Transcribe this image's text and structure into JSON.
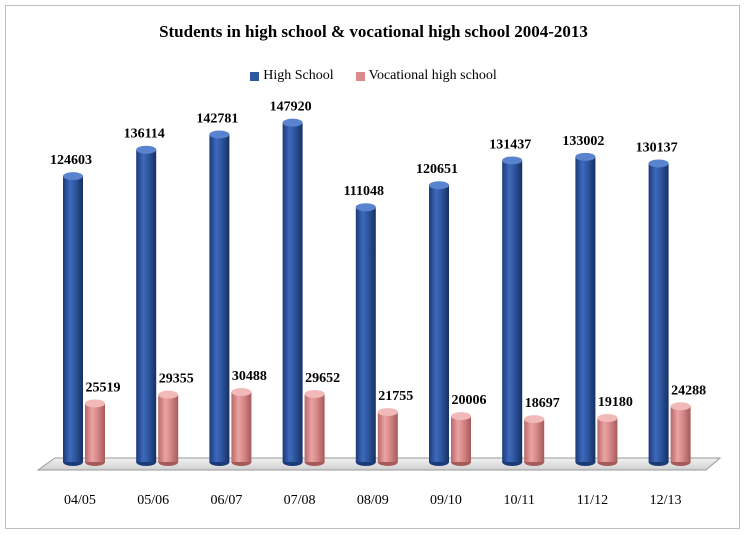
{
  "chart_data": {
    "type": "bar",
    "title": "Students in high school & vocational high school 2004-2013",
    "categories": [
      "04/05",
      "05/06",
      "06/07",
      "07/08",
      "08/09",
      "09/10",
      "10/11",
      "11/12",
      "12/13"
    ],
    "series": [
      {
        "name": "High School",
        "values": [
          124603,
          136114,
          142781,
          147920,
          111048,
          120651,
          131437,
          133002,
          130137
        ]
      },
      {
        "name": "Vocational high school",
        "values": [
          25519,
          29355,
          30488,
          29652,
          21755,
          20006,
          18697,
          19180,
          24288
        ]
      }
    ],
    "ylim": [
      0,
      170000
    ],
    "grid": false,
    "legend_position": "top",
    "colors": {
      "High School": "#2f57a0",
      "Vocational high school": "#d98a8a"
    }
  }
}
